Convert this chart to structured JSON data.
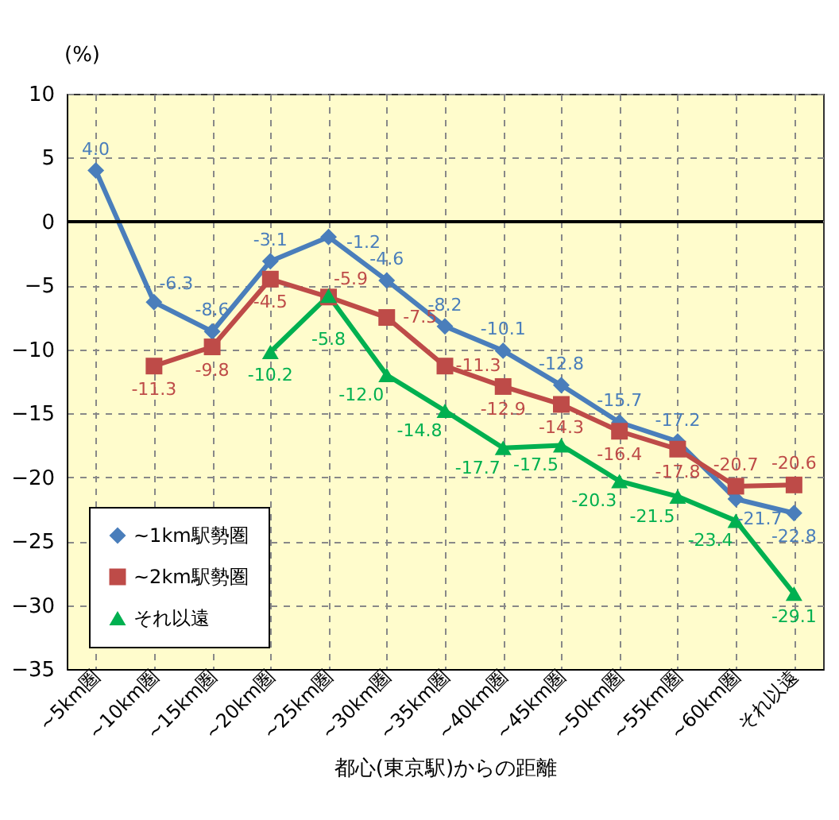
{
  "chart_data": {
    "type": "line",
    "xlabel": "都心(東京駅)からの距離",
    "ylabel": "(%)",
    "categories": [
      "~5km圏",
      "~10km圏",
      "~15km圏",
      "~20km圏",
      "~25km圏",
      "~30km圏",
      "~35km圏",
      "~40km圏",
      "~45km圏",
      "~50km圏",
      "~55km圏",
      "~60km圏",
      "それ以遠"
    ],
    "series": [
      {
        "name": "~1km駅勢圏",
        "color": "#4a7ebb",
        "marker": "diamond",
        "values": [
          4.0,
          -6.3,
          -8.6,
          -3.1,
          -1.2,
          -4.6,
          -8.2,
          -10.1,
          -12.8,
          -15.7,
          -17.2,
          -21.7,
          -22.8
        ],
        "value_labels": [
          "4.0",
          "-6.3",
          "-8.6",
          "-3.1",
          "-1.2",
          "-4.6",
          "-8.2",
          "-10.1",
          "-12.8",
          "-15.7",
          "-17.2",
          "-21.7",
          "-22.8"
        ]
      },
      {
        "name": "~2km駅勢圏",
        "color": "#be4b48",
        "marker": "square",
        "values": [
          null,
          -11.3,
          -9.8,
          -4.5,
          -5.9,
          -7.5,
          -11.3,
          -12.9,
          -14.3,
          -16.4,
          -17.8,
          -20.7,
          -20.6
        ],
        "value_labels": [
          null,
          "-11.3",
          "-9.8",
          "-4.5",
          "-5.9",
          "-7.5",
          "-11.3",
          "-12.9",
          "-14.3",
          "-16.4",
          "-17.8",
          "-20.7",
          "-20.6"
        ]
      },
      {
        "name": "それ以遠",
        "color": "#00b050",
        "marker": "triangle",
        "values": [
          null,
          null,
          null,
          -10.2,
          -5.8,
          -12.0,
          -14.8,
          -17.7,
          -17.5,
          -20.3,
          -21.5,
          -23.4,
          -29.1
        ],
        "value_labels": [
          null,
          null,
          null,
          "-10.2",
          "-5.8",
          "-12.0",
          "-14.8",
          "-17.7",
          "-17.5",
          "-20.3",
          "-21.5",
          "-23.4",
          "-29.1"
        ]
      }
    ],
    "ylim": [
      -35,
      10
    ],
    "yticks": [
      -35,
      -30,
      -25,
      -20,
      -15,
      -10,
      -5,
      0,
      5,
      10
    ],
    "ref_lines": [
      {
        "axis": "y",
        "value": 0
      }
    ],
    "grid": true,
    "legend": "bottom left",
    "line_style": "solid"
  }
}
